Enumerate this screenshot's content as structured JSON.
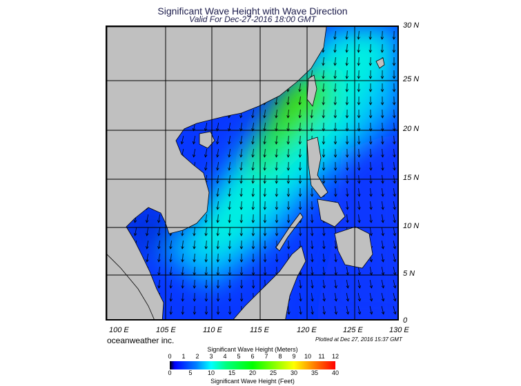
{
  "title": "Significant Wave Height with Wave Direction",
  "subtitle": "Valid For Dec-27-2016 18:00 GMT",
  "lat_labels": [
    "30 N",
    "25 N",
    "20 N",
    "15 N",
    "10 N",
    "5 N",
    "0"
  ],
  "lon_labels": [
    "100 E",
    "105 E",
    "110 E",
    "115 E",
    "120 E",
    "125 E",
    "130 E"
  ],
  "brand": "oceanweather inc.",
  "plotted": "Plotted at Dec 27, 2016 15:37 GMT",
  "colorbar": {
    "meters_title": "Significant Wave Height (Meters)",
    "meters_ticks": [
      "0",
      "1",
      "2",
      "3",
      "4",
      "5",
      "6",
      "7",
      "8",
      "9",
      "10",
      "11",
      "12"
    ],
    "feet_ticks": [
      "0",
      "5",
      "10",
      "15",
      "20",
      "25",
      "30",
      "35",
      "40"
    ],
    "feet_title": "Significant Wave Height (Feet)"
  },
  "colors": {
    "land": "#c0c0c0",
    "low": "#0030ff",
    "mid": "#00e0ff",
    "high": "#20e020"
  }
}
